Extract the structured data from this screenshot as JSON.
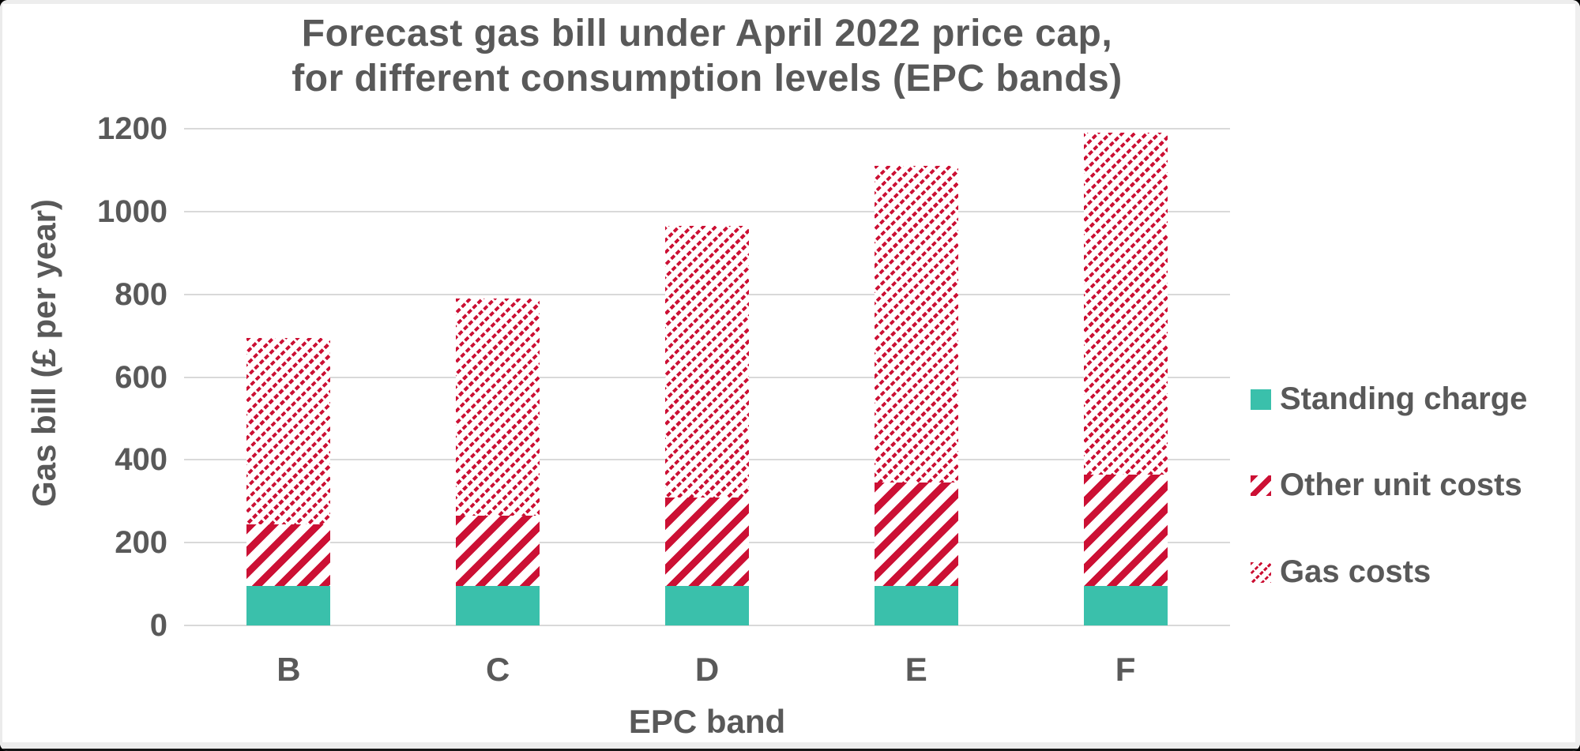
{
  "chart_data": {
    "type": "bar",
    "subtype": "stacked-vertical",
    "title_lines": [
      "Forecast gas bill under April 2022 price cap,",
      "for different consumption levels (EPC bands)"
    ],
    "xlabel": "EPC band",
    "ylabel": "Gas bill (£ per year)",
    "categories": [
      "B",
      "C",
      "D",
      "E",
      "F"
    ],
    "series": [
      {
        "name": "Standing charge",
        "style": "standing",
        "values": [
          95,
          95,
          95,
          95,
          95
        ]
      },
      {
        "name": "Other unit costs",
        "style": "other",
        "values": [
          150,
          170,
          215,
          250,
          270
        ]
      },
      {
        "name": "Gas costs",
        "style": "gas",
        "values": [
          450,
          525,
          655,
          765,
          825
        ]
      }
    ],
    "stack_totals": [
      695,
      790,
      965,
      1110,
      1190
    ],
    "ylim": [
      0,
      1200
    ],
    "yticks": [
      0,
      200,
      400,
      600,
      800,
      1000,
      1200
    ],
    "grid": "horizontal",
    "legend_position": "right",
    "legend_order": [
      "Standing charge",
      "Other unit costs",
      "Gas costs"
    ],
    "colors": {
      "standing_charge": "#3ac0ab",
      "stripe_red": "#cc1034",
      "text": "#595959",
      "gridline": "#d9d9d9",
      "background": "#ffffff"
    }
  }
}
